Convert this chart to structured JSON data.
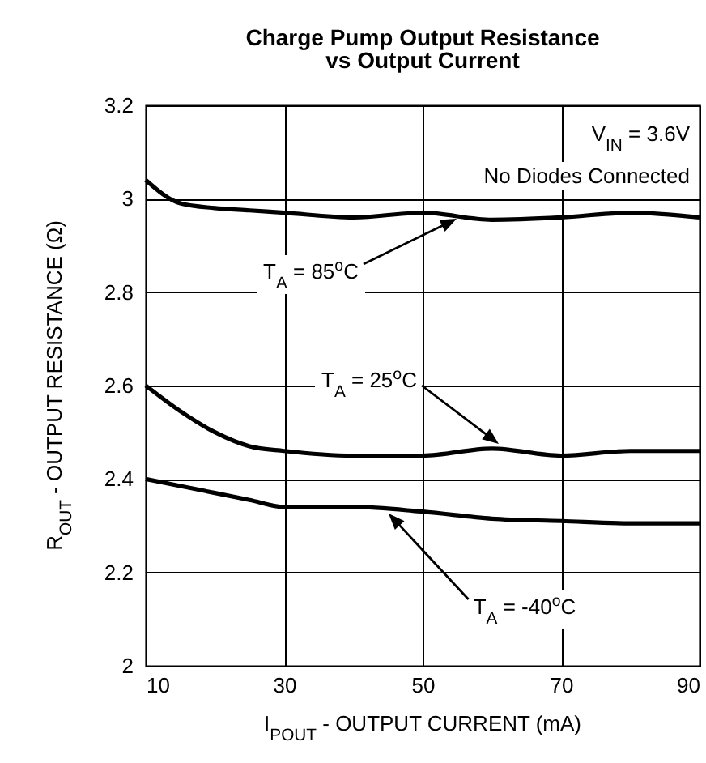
{
  "chart_data": {
    "type": "line",
    "title": "Charge Pump Output Resistance\nvs Output Current",
    "xlabel": "I$_{POUT}$ - OUTPUT CURRENT (mA)",
    "ylabel": "R$_{OUT}$ - OUTPUT RESISTANCE (Ω)",
    "x": [
      10,
      15,
      20,
      25,
      30,
      40,
      50,
      60,
      70,
      80,
      90
    ],
    "series": [
      {
        "color": "#000000",
        "values": [
          3.04,
          2.99,
          2.98,
          2.975,
          2.97,
          2.96,
          2.97,
          2.955,
          2.96,
          2.97,
          2.96
        ]
      },
      {
        "color": "#000000",
        "values": [
          2.6,
          2.545,
          2.5,
          2.47,
          2.46,
          2.45,
          2.45,
          2.465,
          2.45,
          2.46,
          2.46
        ]
      },
      {
        "color": "#000000",
        "values": [
          2.4,
          2.385,
          2.37,
          2.355,
          2.34,
          2.34,
          2.33,
          2.315,
          2.31,
          2.305,
          2.305
        ]
      }
    ],
    "xlim": [
      10,
      90
    ],
    "xticks": [
      10,
      30,
      50,
      70,
      90
    ],
    "ylim": [
      2,
      3.2
    ],
    "yticks": [
      2,
      2.2,
      2.4,
      2.6,
      2.8,
      3,
      3.2
    ],
    "grid": true,
    "legend": false,
    "marker": "none",
    "line_style": "solid",
    "annotations": [
      "V$_{IN}$ = 3.6V",
      "No Diodes Connected",
      "T$_{A}$ = 85$^{o}$C",
      "T$_{A}$ = 25$^{o}$C",
      "T$_{A}$ = -40$^{o}$C"
    ]
  }
}
